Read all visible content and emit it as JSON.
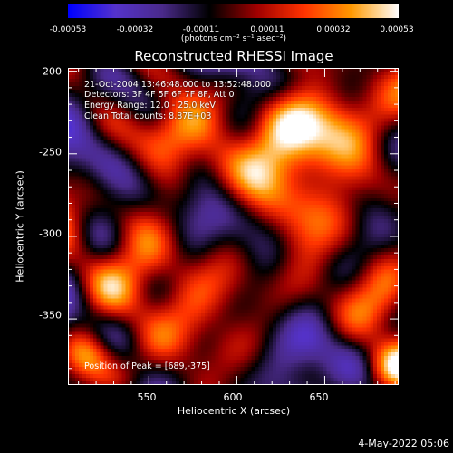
{
  "colorbar": {
    "ticks": [
      "-0.00053",
      "-0.00032",
      "-0.00011",
      "0.00011",
      "0.00032",
      "0.00053"
    ],
    "units": "(photons cm⁻² s⁻¹ asec⁻²)",
    "range": [
      -0.00053,
      0.00053
    ]
  },
  "info": {
    "time": "21-Oct-2004 13:46:48.000 to 13:52:48.000",
    "detectors": "Detectors: 3F 4F 5F 6F 7F 8F, Att 0",
    "energy": "Energy Range: 12.0 - 25.0 keV",
    "clean": "Clean    Total counts: 8.87E+03",
    "peak": "Position of Peak = [689,-375]"
  },
  "footer": {
    "date": "4-May-2022 05:06"
  },
  "chart_data": {
    "type": "heatmap",
    "title": "Reconstructed RHESSI Image",
    "xlabel": "Heliocentric X (arcsec)",
    "ylabel": "Heliocentric Y (arcsec)",
    "xlim": [
      504,
      692
    ],
    "ylim": [
      -390,
      -198
    ],
    "xticks": [
      "550",
      "600",
      "650"
    ],
    "yticks": [
      "-200",
      "-250",
      "-300",
      "-350"
    ],
    "xtick_values": [
      550,
      600,
      650
    ],
    "ytick_values": [
      -200,
      -250,
      -300,
      -350
    ],
    "colorscale": [
      "#0000ff",
      "#5533cc",
      "#4a2a8a",
      "#000000",
      "#a00000",
      "#ff3300",
      "#ff9900",
      "#ffffff"
    ],
    "peak": [
      689,
      -375
    ]
  }
}
